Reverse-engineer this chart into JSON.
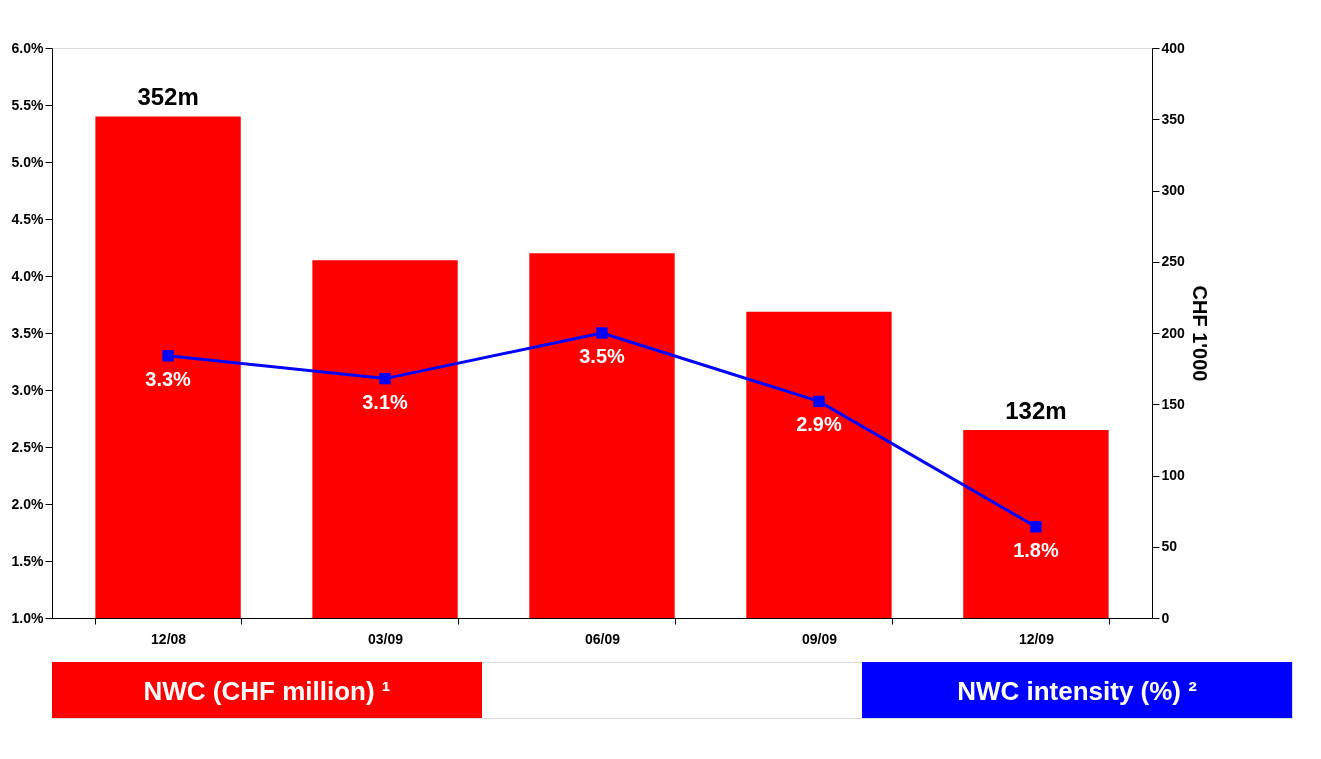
{
  "chart_data": {
    "type": "bar",
    "categories": [
      "12/08",
      "03/09",
      "06/09",
      "09/09",
      "12/09"
    ],
    "series": [
      {
        "name": "NWC (CHF million) ¹",
        "axis": "y2",
        "color": "#ff0000",
        "values": [
          352,
          251,
          256,
          215,
          132
        ],
        "value_labels": [
          "352m",
          null,
          null,
          null,
          "132m"
        ]
      },
      {
        "name": "NWC intensity (%) ²",
        "type": "line",
        "color": "#0000ff",
        "values": [
          3.3,
          3.1,
          3.5,
          2.9,
          1.8
        ],
        "value_labels": [
          "3.3%",
          "3.1%",
          "3.5%",
          "2.9%",
          "1.8%"
        ]
      }
    ],
    "ylim": [
      1,
      6
    ],
    "yticks": [
      {
        "value": 1,
        "label": "1.0%"
      },
      {
        "value": 1.5,
        "label": "1.5%"
      },
      {
        "value": 2,
        "label": "2.0%"
      },
      {
        "value": 2.5,
        "label": "2.5%"
      },
      {
        "value": 3,
        "label": "3.0%"
      },
      {
        "value": 3.5,
        "label": "3.5%"
      },
      {
        "value": 4,
        "label": "4.0%"
      },
      {
        "value": 4.5,
        "label": "4.5%"
      },
      {
        "value": 5,
        "label": "5.0%"
      },
      {
        "value": 5.5,
        "label": "5.5%"
      },
      {
        "value": 6,
        "label": "6.0%"
      }
    ],
    "y2lim": [
      0,
      400
    ],
    "y2ticks": [
      0,
      50,
      100,
      150,
      200,
      250,
      300,
      350,
      400
    ],
    "y2label": "CHF 1'000",
    "marker": "square",
    "grid": false,
    "legend": "bottom"
  }
}
